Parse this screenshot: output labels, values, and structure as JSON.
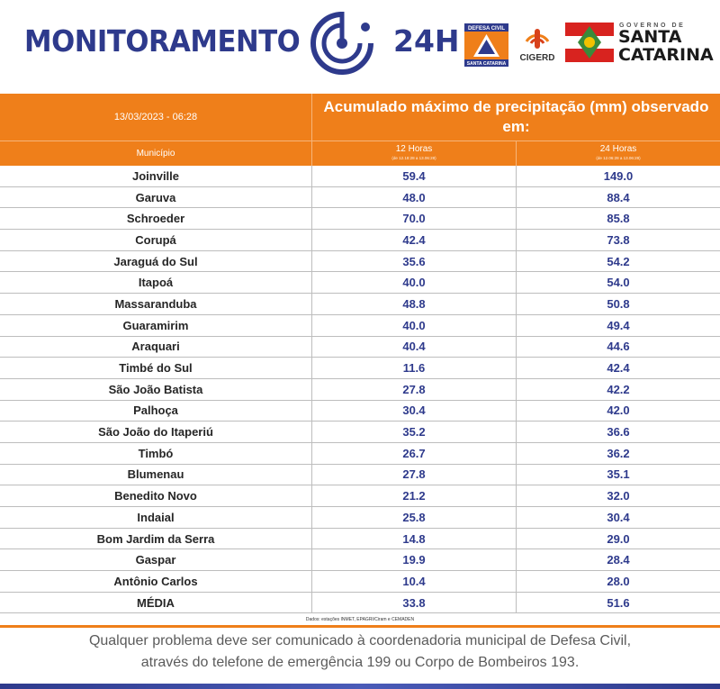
{
  "header": {
    "title": "MONITORAMENTO",
    "suffix": "24H",
    "logos": {
      "defesa_civil_top": "DEFESA CIVIL",
      "defesa_civil_bottom": "SANTA CATARINA",
      "cigerd": "CIGERD",
      "governo_small": "GOVERNO DE",
      "governo_line1": "SANTA",
      "governo_line2": "CATARINA"
    }
  },
  "table": {
    "date": "13/03/2023 - 06:28",
    "title": "Acumulado máximo de precipitação (mm) observado em:",
    "columns": {
      "municipio": "Município",
      "h12": "12 Horas",
      "h12_sub": "(de 12.18:28 a 13.06:28)",
      "h24": "24 Horas",
      "h24_sub": "(de 12.06:28 a 13.06:28)"
    },
    "rows": [
      {
        "municipio": "Joinville",
        "h12": "59.4",
        "h24": "149.0"
      },
      {
        "municipio": "Garuva",
        "h12": "48.0",
        "h24": "88.4"
      },
      {
        "municipio": "Schroeder",
        "h12": "70.0",
        "h24": "85.8"
      },
      {
        "municipio": "Corupá",
        "h12": "42.4",
        "h24": "73.8"
      },
      {
        "municipio": "Jaraguá do Sul",
        "h12": "35.6",
        "h24": "54.2"
      },
      {
        "municipio": "Itapoá",
        "h12": "40.0",
        "h24": "54.0"
      },
      {
        "municipio": "Massaranduba",
        "h12": "48.8",
        "h24": "50.8"
      },
      {
        "municipio": "Guaramirim",
        "h12": "40.0",
        "h24": "49.4"
      },
      {
        "municipio": "Araquari",
        "h12": "40.4",
        "h24": "44.6"
      },
      {
        "municipio": "Timbé do Sul",
        "h12": "11.6",
        "h24": "42.4"
      },
      {
        "municipio": "São João Batista",
        "h12": "27.8",
        "h24": "42.2"
      },
      {
        "municipio": "Palhoça",
        "h12": "30.4",
        "h24": "42.0"
      },
      {
        "municipio": "São João do Itaperiú",
        "h12": "35.2",
        "h24": "36.6"
      },
      {
        "municipio": "Timbó",
        "h12": "26.7",
        "h24": "36.2"
      },
      {
        "municipio": "Blumenau",
        "h12": "27.8",
        "h24": "35.1"
      },
      {
        "municipio": "Benedito Novo",
        "h12": "21.2",
        "h24": "32.0"
      },
      {
        "municipio": "Indaial",
        "h12": "25.8",
        "h24": "30.4"
      },
      {
        "municipio": "Bom Jardim da Serra",
        "h12": "14.8",
        "h24": "29.0"
      },
      {
        "municipio": "Gaspar",
        "h12": "19.9",
        "h24": "28.4"
      },
      {
        "municipio": "Antônio Carlos",
        "h12": "10.4",
        "h24": "28.0"
      },
      {
        "municipio": "MÉDIA",
        "h12": "33.8",
        "h24": "51.6"
      }
    ],
    "source_note": "Dados: estações INMET, EPAGRI/Ciram e CEMADEN"
  },
  "footer": {
    "line1": "Qualquer problema deve ser comunicado à coordenadoria municipal de Defesa Civil,",
    "line2": "através do telefone de emergência 199 ou Corpo de Bombeiros 193."
  },
  "colors": {
    "brand_blue": "#2e3a8c",
    "header_orange": "#ef7f1a",
    "value_blue": "#2e3a8c"
  }
}
